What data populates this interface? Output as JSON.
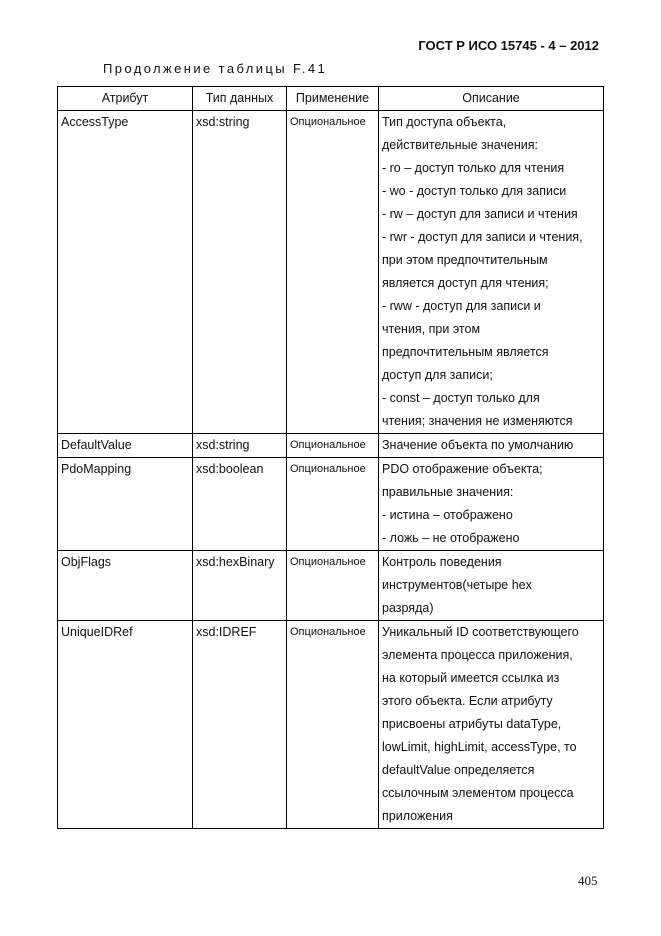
{
  "header": {
    "title": "ГОСТ Р ИСО 15745 - 4 – 2012"
  },
  "caption": "Продолжение таблицы F.41",
  "table": {
    "columns": [
      "Атрибут",
      "Тип данных",
      "Применение",
      "Описание"
    ],
    "rows": [
      [
        "AccessType",
        "xsd:string",
        "Опциональное",
        [
          "Тип доступа объекта,",
          "действительные значения:",
          "- ro – доступ только для чтения",
          "- wo - доступ только для записи",
          "- rw – доступ для записи и чтения",
          "- rwr - доступ для записи и чтения,",
          "при этом предпочтительным",
          "является доступ для чтения;",
          "- rww - доступ для записи и",
          "чтения, при этом",
          "предпочтительным является",
          "доступ для записи;",
          "- const – доступ только для",
          "чтения; значения не изменяются"
        ]
      ],
      [
        "DefaultValue",
        "xsd:string",
        "Опциональное",
        [
          "Значение объекта по умолчанию"
        ]
      ],
      [
        "PdoMapping",
        "xsd:boolean",
        "Опциональное",
        [
          "PDO отображение объекта;",
          "правильные значения:",
          "- истина – отображено",
          "- ложь – не отображено"
        ]
      ],
      [
        "ObjFlags",
        "xsd:hexBinary",
        "Опциональное",
        [
          "Контроль поведения",
          "инструментов(четыре hex",
          "разряда)"
        ]
      ],
      [
        "UniqueIDRef",
        "xsd:IDREF",
        "Опциональное",
        [
          "Уникальный ID соответствующего",
          "элемента процесса приложения,",
          "на который имеется ссылка из",
          "этого объекта. Если атрибуту",
          "присвоены атрибуты dataType,",
          "lowLimit, highLimit, accessType, то",
          "defaultValue определяется",
          "ссылочным элементом процесса",
          "приложения"
        ]
      ]
    ]
  },
  "page_number": "405"
}
